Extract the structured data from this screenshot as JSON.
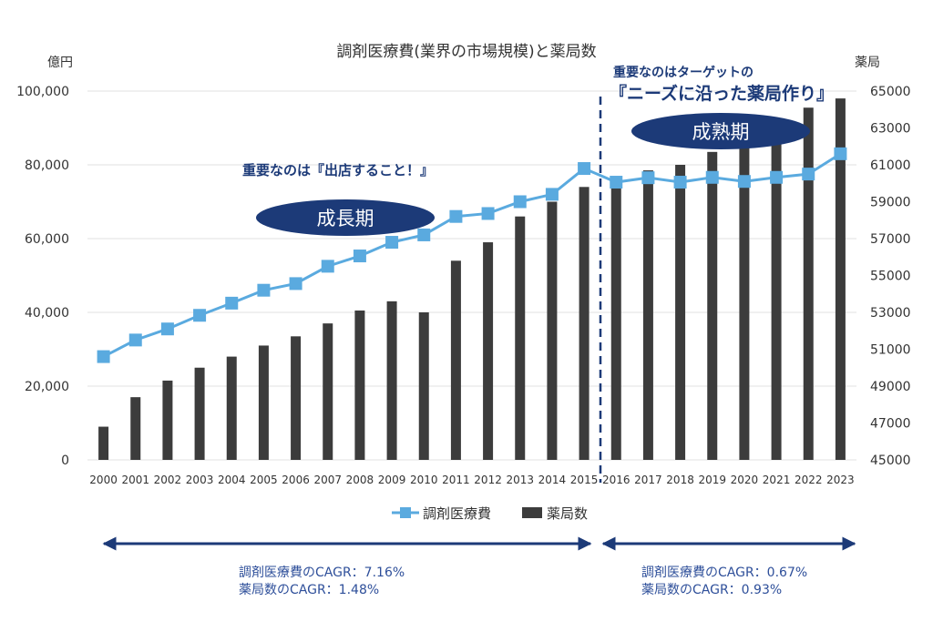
{
  "chart_data": {
    "type": "bar+line",
    "title": "調剤医療費(業界の市場規模)と薬局数",
    "ylabel_left": "億円",
    "ylabel_right": "薬局",
    "categories": [
      "2000",
      "2001",
      "2002",
      "2003",
      "2004",
      "2005",
      "2006",
      "2007",
      "2008",
      "2009",
      "2010",
      "2011",
      "2012",
      "2013",
      "2014",
      "2015",
      "2016",
      "2017",
      "2018",
      "2019",
      "2020",
      "2021",
      "2022",
      "2023"
    ],
    "ylim_left": [
      0,
      100000
    ],
    "yticks_left": [
      "0",
      "20,000",
      "40,000",
      "60,000",
      "80,000",
      "100,000"
    ],
    "ylim_right": [
      45000,
      65000
    ],
    "yticks_right": [
      "45000",
      "47000",
      "49000",
      "51000",
      "53000",
      "55000",
      "57000",
      "59000",
      "61000",
      "63000",
      "65000"
    ],
    "grid": true,
    "legend_position": "bottom",
    "series": [
      {
        "name": "調剤医療費",
        "kind": "line",
        "axis": "left",
        "color": "#5aaadf",
        "values": [
          28000,
          32500,
          35500,
          39200,
          42500,
          46000,
          47800,
          52500,
          55300,
          59000,
          61000,
          66000,
          66800,
          70000,
          72000,
          79000,
          75300,
          76500,
          75300,
          76600,
          75500,
          76600,
          77500,
          83000
        ]
      },
      {
        "name": "薬局数",
        "kind": "bar",
        "axis": "right",
        "color": "#3c3c3c",
        "values": [
          46800,
          48400,
          49300,
          50000,
          50600,
          51200,
          51700,
          52400,
          53100,
          53600,
          53000,
          55800,
          56800,
          58200,
          59000,
          59800,
          60000,
          60700,
          61000,
          61700,
          62500,
          63500,
          64100,
          64600
        ]
      }
    ]
  },
  "annotations": {
    "growth_note": "重要なのは『出店すること！』",
    "growth_label": "成長期",
    "mature_note_line1": "重要なのはターゲットの",
    "mature_note_line2": "『ニーズに沿った薬局作り』",
    "mature_label": "成熟期"
  },
  "cagr": {
    "left_line1": "調剤医療費のCAGR：7.16%",
    "left_line2": "薬局数のCAGR：1.48%",
    "right_line1": "調剤医療費のCAGR：0.67%",
    "right_line2": "薬局数のCAGR：0.93%"
  },
  "colors": {
    "accent_navy": "#1c3a78",
    "line_blue": "#5aaadf",
    "bar_dark": "#3c3c3c"
  }
}
